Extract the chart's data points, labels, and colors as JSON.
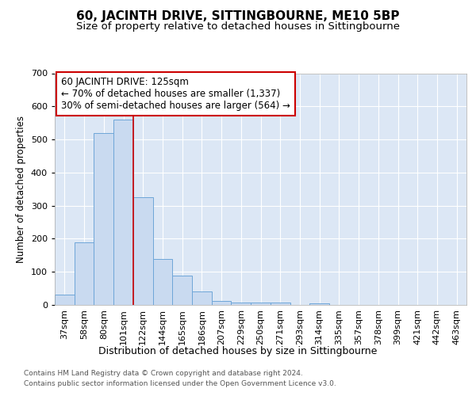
{
  "title": "60, JACINTH DRIVE, SITTINGBOURNE, ME10 5BP",
  "subtitle": "Size of property relative to detached houses in Sittingbourne",
  "xlabel": "Distribution of detached houses by size in Sittingbourne",
  "ylabel": "Number of detached properties",
  "footer_line1": "Contains HM Land Registry data © Crown copyright and database right 2024.",
  "footer_line2": "Contains public sector information licensed under the Open Government Licence v3.0.",
  "categories": [
    "37sqm",
    "58sqm",
    "80sqm",
    "101sqm",
    "122sqm",
    "144sqm",
    "165sqm",
    "186sqm",
    "207sqm",
    "229sqm",
    "250sqm",
    "271sqm",
    "293sqm",
    "314sqm",
    "335sqm",
    "357sqm",
    "378sqm",
    "399sqm",
    "421sqm",
    "442sqm",
    "463sqm"
  ],
  "values": [
    30,
    190,
    520,
    560,
    325,
    140,
    88,
    40,
    13,
    8,
    8,
    8,
    0,
    5,
    0,
    0,
    0,
    0,
    0,
    0,
    0
  ],
  "bar_color": "#c9daf0",
  "bar_edge_color": "#6ea6d8",
  "annotation_text": "60 JACINTH DRIVE: 125sqm\n← 70% of detached houses are smaller (1,337)\n30% of semi-detached houses are larger (564) →",
  "annotation_box_color": "#ffffff",
  "annotation_box_edge_color": "#cc0000",
  "vline_color": "#cc0000",
  "vline_x": 4.0,
  "ylim": [
    0,
    700
  ],
  "yticks": [
    0,
    100,
    200,
    300,
    400,
    500,
    600,
    700
  ],
  "fig_bg_color": "#ffffff",
  "plot_bg_color": "#dce7f5",
  "grid_color": "#ffffff",
  "title_fontsize": 11,
  "subtitle_fontsize": 9.5,
  "annot_fontsize": 8.5,
  "tick_fontsize": 8,
  "ylabel_fontsize": 8.5,
  "xlabel_fontsize": 9,
  "footer_fontsize": 6.5
}
